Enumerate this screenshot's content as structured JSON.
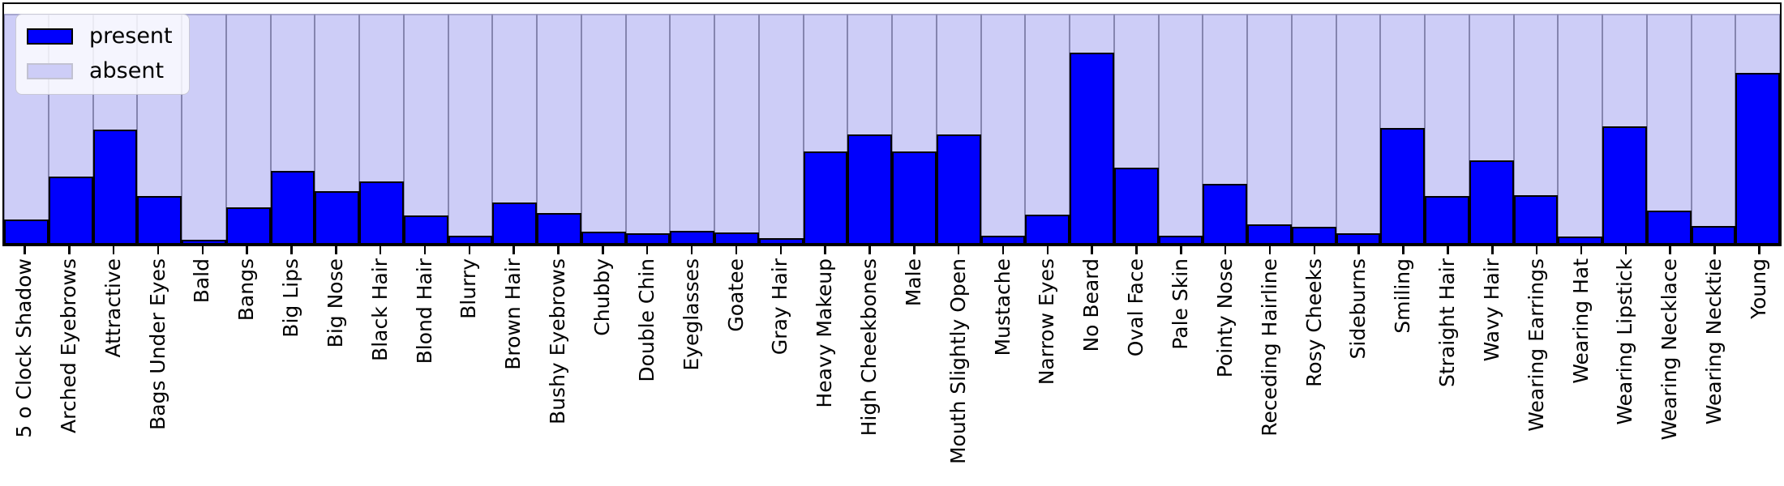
{
  "chart_data": {
    "type": "bar",
    "stacked": true,
    "normalized": true,
    "title": "",
    "xlabel": "",
    "ylabel": "",
    "ylim": [
      0,
      1.05
    ],
    "grid": false,
    "legend_position": "upper left",
    "x_tick_rotation": 90,
    "categories": [
      "5 o Clock Shadow",
      "Arched Eyebrows",
      "Attractive",
      "Bags Under Eyes",
      "Bald",
      "Bangs",
      "Big Lips",
      "Big Nose",
      "Black Hair",
      "Blond Hair",
      "Blurry",
      "Brown Hair",
      "Bushy Eyebrows",
      "Chubby",
      "Double Chin",
      "Eyeglasses",
      "Goatee",
      "Gray Hair",
      "Heavy Makeup",
      "High Cheekbones",
      "Male",
      "Mouth Slightly Open",
      "Mustache",
      "Narrow Eyes",
      "No Beard",
      "Oval Face",
      "Pale Skin",
      "Pointy Nose",
      "Receding Hairline",
      "Rosy Cheeks",
      "Sideburns",
      "Smiling",
      "Straight Hair",
      "Wavy Hair",
      "Wearing Earrings",
      "Wearing Hat",
      "Wearing Lipstick",
      "Wearing Necklace",
      "Wearing Necktie",
      "Young"
    ],
    "series": [
      {
        "name": "present",
        "color": "#0000fd",
        "edge_color": "#000000",
        "values": [
          0.11,
          0.295,
          0.5,
          0.21,
          0.022,
          0.161,
          0.321,
          0.233,
          0.272,
          0.128,
          0.038,
          0.183,
          0.137,
          0.055,
          0.048,
          0.061,
          0.052,
          0.028,
          0.405,
          0.479,
          0.405,
          0.478,
          0.04,
          0.13,
          0.832,
          0.333,
          0.04,
          0.264,
          0.088,
          0.078,
          0.049,
          0.505,
          0.21,
          0.365,
          0.213,
          0.034,
          0.512,
          0.149,
          0.08,
          0.745
        ]
      },
      {
        "name": "absent",
        "color": "#cdcdf7",
        "edge_color": "#8585af",
        "values": [
          0.89,
          0.705,
          0.5,
          0.79,
          0.978,
          0.839,
          0.679,
          0.767,
          0.728,
          0.872,
          0.962,
          0.817,
          0.863,
          0.945,
          0.952,
          0.939,
          0.948,
          0.972,
          0.595,
          0.521,
          0.595,
          0.522,
          0.96,
          0.87,
          0.168,
          0.667,
          0.96,
          0.736,
          0.912,
          0.922,
          0.951,
          0.495,
          0.79,
          0.635,
          0.787,
          0.966,
          0.488,
          0.851,
          0.92,
          0.255
        ]
      }
    ]
  },
  "legend": {
    "items": [
      {
        "label": "present",
        "color": "#0000fd"
      },
      {
        "label": "absent",
        "color": "#cdcdf7"
      }
    ]
  },
  "colors": {
    "present_fill": "#0000fd",
    "present_edge": "#000000",
    "absent_fill": "#cdcdf7",
    "absent_edge": "#8585af",
    "axes_frame": "#000000",
    "figure_background": "#ffffff"
  }
}
